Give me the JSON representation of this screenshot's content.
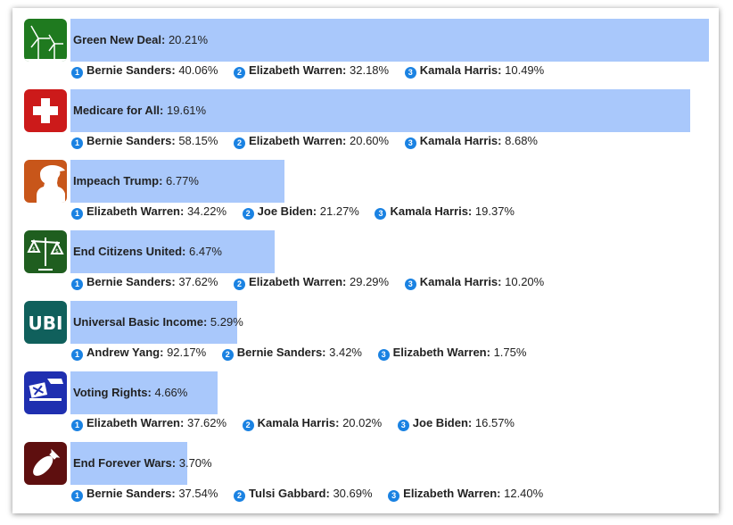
{
  "chart_data": {
    "type": "bar",
    "orientation": "horizontal",
    "xlim": [
      0,
      20.21
    ],
    "categories": [
      "Green New Deal",
      "Medicare for All",
      "Impeach Trump",
      "End Citizens United",
      "Universal Basic Income",
      "Voting Rights",
      "End Forever Wars"
    ],
    "values": [
      20.21,
      19.61,
      6.77,
      6.47,
      5.29,
      4.66,
      3.7
    ],
    "bar_color": "#a9c8fb",
    "rank_badge_color": "#1a82e2",
    "rows": [
      {
        "issue": "Green New Deal",
        "label": "Green New Deal:",
        "value_text": "20.21%",
        "value": 20.21,
        "icon": "wind-turbine-icon",
        "icon_color": "#1f7a1f",
        "leaders": [
          {
            "rank": "1",
            "name": "Bernie Sanders:",
            "pct": "40.06%"
          },
          {
            "rank": "2",
            "name": "Elizabeth Warren:",
            "pct": "32.18%"
          },
          {
            "rank": "3",
            "name": "Kamala Harris:",
            "pct": "10.49%"
          }
        ]
      },
      {
        "issue": "Medicare for All",
        "label": "Medicare for All:",
        "value_text": "19.61%",
        "value": 19.61,
        "icon": "medical-cross-icon",
        "icon_color": "#cc1a1a",
        "leaders": [
          {
            "rank": "1",
            "name": "Bernie Sanders:",
            "pct": "58.15%"
          },
          {
            "rank": "2",
            "name": "Elizabeth Warren:",
            "pct": "20.60%"
          },
          {
            "rank": "3",
            "name": "Kamala Harris:",
            "pct": "8.68%"
          }
        ]
      },
      {
        "issue": "Impeach Trump",
        "label": "Impeach Trump:",
        "value_text": "6.77%",
        "value": 6.77,
        "icon": "trump-silhouette-icon",
        "icon_color": "#c8561a",
        "leaders": [
          {
            "rank": "1",
            "name": "Elizabeth Warren:",
            "pct": "34.22%"
          },
          {
            "rank": "2",
            "name": "Joe Biden:",
            "pct": "21.27%"
          },
          {
            "rank": "3",
            "name": "Kamala Harris:",
            "pct": "19.37%"
          }
        ]
      },
      {
        "issue": "End Citizens United",
        "label": "End Citizens United:",
        "value_text": "6.47%",
        "value": 6.47,
        "icon": "money-scale-icon",
        "icon_color": "#1f5e1f",
        "leaders": [
          {
            "rank": "1",
            "name": "Bernie Sanders:",
            "pct": "37.62%"
          },
          {
            "rank": "2",
            "name": "Elizabeth Warren:",
            "pct": "29.29%"
          },
          {
            "rank": "3",
            "name": "Kamala Harris:",
            "pct": "10.20%"
          }
        ]
      },
      {
        "issue": "Universal Basic Income",
        "label": "Universal Basic Income:",
        "value_text": "5.29%",
        "value": 5.29,
        "icon": "ubi-icon",
        "icon_color": "#10605c",
        "icon_text": "UBI",
        "leaders": [
          {
            "rank": "1",
            "name": "Andrew Yang:",
            "pct": "92.17%"
          },
          {
            "rank": "2",
            "name": "Bernie Sanders:",
            "pct": "3.42%"
          },
          {
            "rank": "3",
            "name": "Elizabeth Warren:",
            "pct": "1.75%"
          }
        ]
      },
      {
        "issue": "Voting Rights",
        "label": "Voting Rights:",
        "value_text": "4.66%",
        "value": 4.66,
        "icon": "ballot-box-icon",
        "icon_color": "#1f2fb0",
        "leaders": [
          {
            "rank": "1",
            "name": "Elizabeth Warren:",
            "pct": "37.62%"
          },
          {
            "rank": "2",
            "name": "Kamala Harris:",
            "pct": "20.02%"
          },
          {
            "rank": "3",
            "name": "Joe Biden:",
            "pct": "16.57%"
          }
        ]
      },
      {
        "issue": "End Forever Wars",
        "label": "End Forever Wars:",
        "value_text": "3.70%",
        "value": 3.7,
        "icon": "bomb-icon",
        "icon_color": "#5e0f0f",
        "leaders": [
          {
            "rank": "1",
            "name": "Bernie Sanders:",
            "pct": "37.54%"
          },
          {
            "rank": "2",
            "name": "Tulsi Gabbard:",
            "pct": "30.69%"
          },
          {
            "rank": "3",
            "name": "Elizabeth Warren:",
            "pct": "12.40%"
          }
        ]
      }
    ]
  }
}
